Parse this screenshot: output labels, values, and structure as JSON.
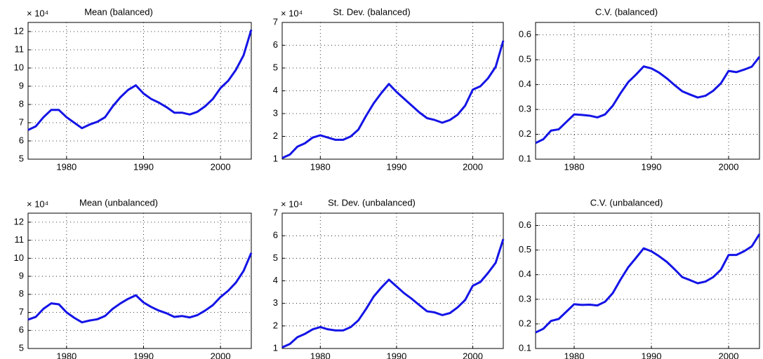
{
  "chart_data": [
    {
      "type": "line",
      "title": "Mean (balanced)",
      "scale_label": "× 10⁴",
      "color": "#1414e6",
      "grid": true,
      "x": [
        1975,
        1976,
        1977,
        1978,
        1979,
        1980,
        1981,
        1982,
        1983,
        1984,
        1985,
        1986,
        1987,
        1988,
        1989,
        1990,
        1991,
        1992,
        1993,
        1994,
        1995,
        1996,
        1997,
        1998,
        1999,
        2000,
        2001,
        2002,
        2003,
        2004
      ],
      "values": [
        6.6,
        6.8,
        7.3,
        7.7,
        7.7,
        7.3,
        7.0,
        6.7,
        6.9,
        7.05,
        7.3,
        7.9,
        8.4,
        8.8,
        9.05,
        8.6,
        8.3,
        8.1,
        7.85,
        7.55,
        7.55,
        7.45,
        7.6,
        7.9,
        8.3,
        8.9,
        9.3,
        9.9,
        10.7,
        12.1
      ],
      "xlim": [
        1975,
        2004
      ],
      "xticks": [
        1980,
        1990,
        2000
      ],
      "ylim": [
        5,
        12.5
      ],
      "yticks": [
        5,
        6,
        7,
        8,
        9,
        10,
        11,
        12
      ]
    },
    {
      "type": "line",
      "title": "St. Dev. (balanced)",
      "scale_label": "× 10⁴",
      "color": "#1414e6",
      "grid": true,
      "x": [
        1975,
        1976,
        1977,
        1978,
        1979,
        1980,
        1981,
        1982,
        1983,
        1984,
        1985,
        1986,
        1987,
        1988,
        1989,
        1990,
        1991,
        1992,
        1993,
        1994,
        1995,
        1996,
        1997,
        1998,
        1999,
        2000,
        2001,
        2002,
        2003,
        2004
      ],
      "values": [
        1.05,
        1.2,
        1.55,
        1.7,
        1.95,
        2.05,
        1.95,
        1.85,
        1.85,
        2.0,
        2.3,
        2.9,
        3.45,
        3.9,
        4.3,
        3.95,
        3.65,
        3.35,
        3.05,
        2.8,
        2.72,
        2.6,
        2.72,
        2.95,
        3.35,
        4.05,
        4.2,
        4.55,
        5.05,
        6.2
      ],
      "xlim": [
        1975,
        2004
      ],
      "xticks": [
        1980,
        1990,
        2000
      ],
      "ylim": [
        1,
        7
      ],
      "yticks": [
        1,
        2,
        3,
        4,
        5,
        6,
        7
      ]
    },
    {
      "type": "line",
      "title": "C.V. (balanced)",
      "color": "#1414e6",
      "grid": true,
      "x": [
        1975,
        1976,
        1977,
        1978,
        1979,
        1980,
        1981,
        1982,
        1983,
        1984,
        1985,
        1986,
        1987,
        1988,
        1989,
        1990,
        1991,
        1992,
        1993,
        1994,
        1995,
        1996,
        1997,
        1998,
        1999,
        2000,
        2001,
        2002,
        2003,
        2004
      ],
      "values": [
        0.165,
        0.18,
        0.215,
        0.22,
        0.25,
        0.28,
        0.278,
        0.275,
        0.268,
        0.28,
        0.315,
        0.365,
        0.41,
        0.44,
        0.473,
        0.465,
        0.448,
        0.425,
        0.398,
        0.373,
        0.36,
        0.348,
        0.355,
        0.375,
        0.405,
        0.455,
        0.45,
        0.46,
        0.472,
        0.512
      ],
      "xlim": [
        1975,
        2004
      ],
      "xticks": [
        1980,
        1990,
        2000
      ],
      "ylim": [
        0.1,
        0.65
      ],
      "yticks": [
        0.1,
        0.2,
        0.3,
        0.4,
        0.5,
        0.6
      ]
    },
    {
      "type": "line",
      "title": "Mean (unbalanced)",
      "scale_label": "× 10⁴",
      "color": "#1414e6",
      "grid": true,
      "x": [
        1975,
        1976,
        1977,
        1978,
        1979,
        1980,
        1981,
        1982,
        1983,
        1984,
        1985,
        1986,
        1987,
        1988,
        1989,
        1990,
        1991,
        1992,
        1993,
        1994,
        1995,
        1996,
        1997,
        1998,
        1999,
        2000,
        2001,
        2002,
        2003,
        2004
      ],
      "values": [
        6.6,
        6.75,
        7.2,
        7.5,
        7.45,
        7.0,
        6.7,
        6.45,
        6.55,
        6.62,
        6.8,
        7.2,
        7.5,
        7.75,
        7.95,
        7.55,
        7.3,
        7.1,
        6.95,
        6.75,
        6.8,
        6.72,
        6.85,
        7.1,
        7.4,
        7.85,
        8.2,
        8.65,
        9.3,
        10.3
      ],
      "xlim": [
        1975,
        2004
      ],
      "xticks": [
        1980,
        1990,
        2000
      ],
      "ylim": [
        5,
        12.5
      ],
      "yticks": [
        5,
        6,
        7,
        8,
        9,
        10,
        11,
        12
      ]
    },
    {
      "type": "line",
      "title": "St. Dev. (unbalanced)",
      "scale_label": "× 10⁴",
      "color": "#1414e6",
      "grid": true,
      "x": [
        1975,
        1976,
        1977,
        1978,
        1979,
        1980,
        1981,
        1982,
        1983,
        1984,
        1985,
        1986,
        1987,
        1988,
        1989,
        1990,
        1991,
        1992,
        1993,
        1994,
        1995,
        1996,
        1997,
        1998,
        1999,
        2000,
        2001,
        2002,
        2003,
        2004
      ],
      "values": [
        1.05,
        1.2,
        1.5,
        1.65,
        1.85,
        1.95,
        1.85,
        1.8,
        1.8,
        1.95,
        2.25,
        2.75,
        3.3,
        3.7,
        4.05,
        3.75,
        3.45,
        3.2,
        2.92,
        2.65,
        2.6,
        2.48,
        2.57,
        2.82,
        3.15,
        3.78,
        3.95,
        4.35,
        4.8,
        5.85
      ],
      "xlim": [
        1975,
        2004
      ],
      "xticks": [
        1980,
        1990,
        2000
      ],
      "ylim": [
        1,
        7
      ],
      "yticks": [
        1,
        2,
        3,
        4,
        5,
        6,
        7
      ]
    },
    {
      "type": "line",
      "title": "C.V.  (unbalanced)",
      "color": "#1414e6",
      "grid": true,
      "x": [
        1975,
        1976,
        1977,
        1978,
        1979,
        1980,
        1981,
        1982,
        1983,
        1984,
        1985,
        1986,
        1987,
        1988,
        1989,
        1990,
        1991,
        1992,
        1993,
        1994,
        1995,
        1996,
        1997,
        1998,
        1999,
        2000,
        2001,
        2002,
        2003,
        2004
      ],
      "values": [
        0.165,
        0.18,
        0.212,
        0.22,
        0.25,
        0.28,
        0.277,
        0.278,
        0.275,
        0.29,
        0.325,
        0.38,
        0.43,
        0.468,
        0.507,
        0.495,
        0.475,
        0.452,
        0.422,
        0.39,
        0.378,
        0.365,
        0.372,
        0.39,
        0.42,
        0.48,
        0.48,
        0.495,
        0.515,
        0.565
      ],
      "xlim": [
        1975,
        2004
      ],
      "xticks": [
        1980,
        1990,
        2000
      ],
      "ylim": [
        0.1,
        0.65
      ],
      "yticks": [
        0.1,
        0.2,
        0.3,
        0.4,
        0.5,
        0.6
      ]
    }
  ]
}
